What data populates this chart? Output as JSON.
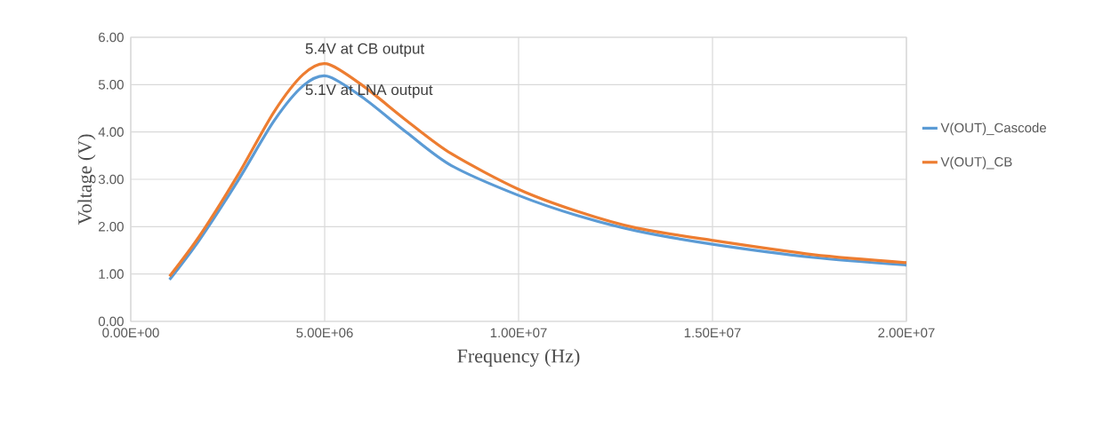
{
  "chart_data": {
    "type": "line",
    "xlabel": "Frequency (Hz)",
    "ylabel": "Voltage (V)",
    "xlim": [
      0,
      20000000
    ],
    "ylim": [
      0,
      6
    ],
    "xticks": [
      {
        "value": 0,
        "label": "0.00E+00"
      },
      {
        "value": 5000000,
        "label": "5.00E+06"
      },
      {
        "value": 10000000,
        "label": "1.00E+07"
      },
      {
        "value": 15000000,
        "label": "1.50E+07"
      },
      {
        "value": 20000000,
        "label": "2.00E+07"
      }
    ],
    "yticks": [
      {
        "value": 0,
        "label": "0.00"
      },
      {
        "value": 1,
        "label": "1.00"
      },
      {
        "value": 2,
        "label": "2.00"
      },
      {
        "value": 3,
        "label": "3.00"
      },
      {
        "value": 4,
        "label": "4.00"
      },
      {
        "value": 5,
        "label": "5.00"
      },
      {
        "value": 6,
        "label": "6.00"
      }
    ],
    "grid": true,
    "legend": "right",
    "marker": "none",
    "line_style": "solid",
    "x": [
      1000000,
      1770000,
      2770000,
      3690000,
      4450000,
      5060000,
      5980000,
      7130000,
      8270000,
      10000000,
      11530000,
      13050000,
      15000000,
      17600000,
      20000000
    ],
    "series": [
      {
        "name": "V(OUT)_Cascode",
        "color": "#5b9bd5",
        "values": [
          0.88,
          1.72,
          2.98,
          4.23,
          4.98,
          5.18,
          4.73,
          3.98,
          3.29,
          2.66,
          2.23,
          1.91,
          1.63,
          1.35,
          1.19
        ]
      },
      {
        "name": "V(OUT)_CB",
        "color": "#ed7d31",
        "values": [
          0.95,
          1.8,
          3.1,
          4.42,
          5.22,
          5.44,
          4.98,
          4.23,
          3.54,
          2.79,
          2.32,
          1.97,
          1.71,
          1.41,
          1.24
        ]
      }
    ],
    "annotations": [
      "5.4V at CB output",
      "5.1V at LNA output"
    ]
  }
}
